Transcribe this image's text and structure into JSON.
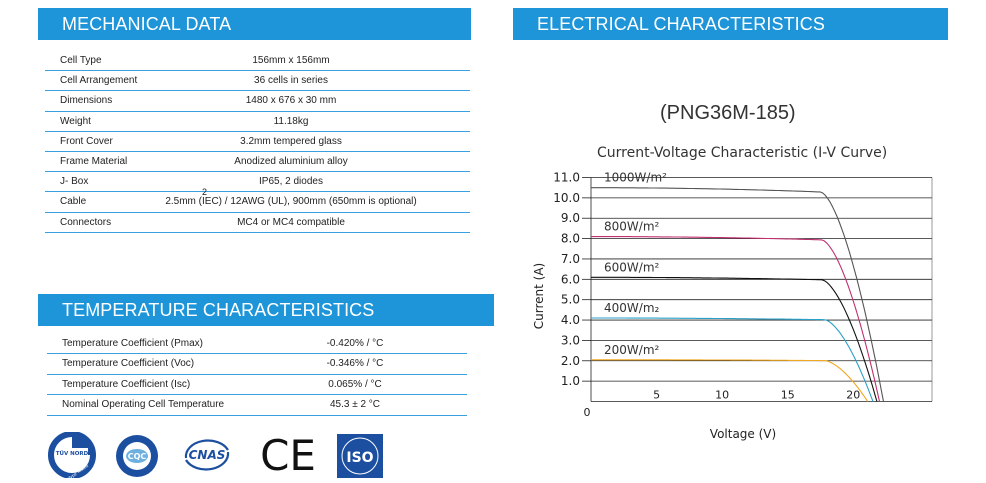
{
  "mechanical": {
    "title": "MECHANICAL DATA",
    "rows": [
      {
        "label": "Cell Type",
        "value": "156mm x 156mm"
      },
      {
        "label": "Cell Arrangement",
        "value": "36 cells in series"
      },
      {
        "label": "Dimensions",
        "value": "1480 x 676 x 30 mm"
      },
      {
        "label": "Weight",
        "value": "11.18kg"
      },
      {
        "label": "Front Cover",
        "value": "3.2mm tempered glass"
      },
      {
        "label": "Frame Material",
        "value": "Anodized aluminium alloy"
      },
      {
        "label": "J- Box",
        "value": "IP65, 2 diodes"
      },
      {
        "label": "Cable",
        "value": "2.5mm  (IEC) / 12AWG (UL), 900mm (650mm is optional)",
        "sup": "2"
      },
      {
        "label": "Connectors",
        "value": "MC4 or MC4 compatible"
      }
    ]
  },
  "temperature": {
    "title": "TEMPERATURE CHARACTERISTICS",
    "rows": [
      {
        "label": "Temperature Coefficient (Pmax)",
        "value": "-0.420% / °C"
      },
      {
        "label": "Temperature Coefficient (Voc)",
        "value": "-0.346% / °C"
      },
      {
        "label": "Temperature Coefficient (Isc)",
        "value": "0.065% / °C"
      },
      {
        "label": "Nominal Operating Cell Temperature",
        "value": "45.3  ± 2 °C"
      }
    ]
  },
  "logos": [
    {
      "name": "tuv-nord-logo",
      "text": "TÜV NORD",
      "subtext": "Type Tested"
    },
    {
      "name": "cqc-logo",
      "text": "CQC"
    },
    {
      "name": "cnas-logo",
      "text": "CNAS"
    },
    {
      "name": "ce-logo",
      "text": "CE"
    },
    {
      "name": "iso-logo",
      "text": "ISO"
    }
  ],
  "electrical": {
    "title": "ELECTRICAL CHARACTERISTICS",
    "model": "(PNG36M-185)"
  },
  "colors": {
    "banner": "#1e95d8",
    "row_line": "#3aa0e0",
    "curve_1000": "#555555",
    "curve_800": "#c03070",
    "curve_600": "#111111",
    "curve_400": "#2aa0c8",
    "curve_200": "#f0a820"
  },
  "chart_data": {
    "type": "line",
    "title": "Current-Voltage Characteristic (I-V Curve)",
    "xlabel": "Voltage (V)",
    "ylabel": "Current (A)",
    "xlim": [
      0,
      26
    ],
    "ylim": [
      0,
      11
    ],
    "x_ticks": [
      "0",
      "5",
      "10",
      "15",
      "20"
    ],
    "y_ticks": [
      "1.0",
      "2.0",
      "3.0",
      "4.0",
      "5.0",
      "6.0",
      "7.0",
      "8.0",
      "9.0",
      "10.0",
      "11.0"
    ],
    "grid": true,
    "series": [
      {
        "name": "1000W/m²",
        "label": "1000W/m²",
        "isc": 10.5,
        "voc": 22.3,
        "vknee": 17.5
      },
      {
        "name": "800W/m²",
        "label": "800W/m²",
        "isc": 8.1,
        "voc": 22.0,
        "vknee": 17.6
      },
      {
        "name": "600W/m²",
        "label": "600W/m²",
        "isc": 6.1,
        "voc": 21.8,
        "vknee": 17.6
      },
      {
        "name": "400W/m²",
        "label": "400W/m₂",
        "isc": 4.1,
        "voc": 21.5,
        "vknee": 17.8
      },
      {
        "name": "200W/m²",
        "label": "200W/m²",
        "isc": 2.05,
        "voc": 21.1,
        "vknee": 17.8
      }
    ]
  }
}
